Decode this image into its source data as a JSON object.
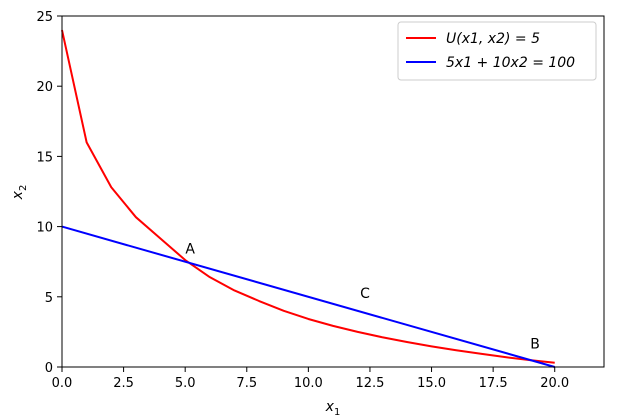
{
  "chart_data": {
    "type": "line",
    "title": "",
    "xlabel": "x",
    "xlabel_sub": "1",
    "ylabel": "x",
    "ylabel_sub": "2",
    "xlim": [
      0,
      22
    ],
    "ylim": [
      0,
      25
    ],
    "grid": false,
    "legend_position": "top-right",
    "x_ticks": [
      0,
      2.5,
      5,
      7.5,
      10,
      12.5,
      15,
      17.5,
      20
    ],
    "x_tick_labels": [
      "0.0",
      "2.5",
      "5.0",
      "7.5",
      "10.0",
      "12.5",
      "15.0",
      "17.5",
      "20.0"
    ],
    "y_ticks": [
      0,
      5,
      10,
      15,
      20,
      25
    ],
    "y_tick_labels": [
      "0",
      "5",
      "10",
      "15",
      "20",
      "25"
    ],
    "series": [
      {
        "name": "U(x1, x2) = 5",
        "color": "#ff0000",
        "x": [
          0,
          1,
          2,
          3,
          4,
          5,
          6,
          7,
          8,
          9,
          10,
          11,
          12,
          13,
          14,
          15,
          16,
          17,
          18,
          19,
          20
        ],
        "y": [
          24.0,
          16.0,
          12.8,
          10.67,
          9.14,
          7.62,
          6.4,
          5.45,
          4.7,
          4.0,
          3.42,
          2.93,
          2.5,
          2.12,
          1.78,
          1.47,
          1.19,
          0.94,
          0.7,
          0.49,
          0.3
        ]
      },
      {
        "name": "5x1 + 10x2 = 100",
        "color": "#0000ff",
        "x": [
          0,
          20
        ],
        "y": [
          10,
          0
        ]
      }
    ],
    "annotations": [
      {
        "text": "A",
        "x": 5.2,
        "y": 8.1
      },
      {
        "text": "C",
        "x": 12.3,
        "y": 4.9
      },
      {
        "text": "B",
        "x": 19.2,
        "y": 1.3
      }
    ]
  }
}
